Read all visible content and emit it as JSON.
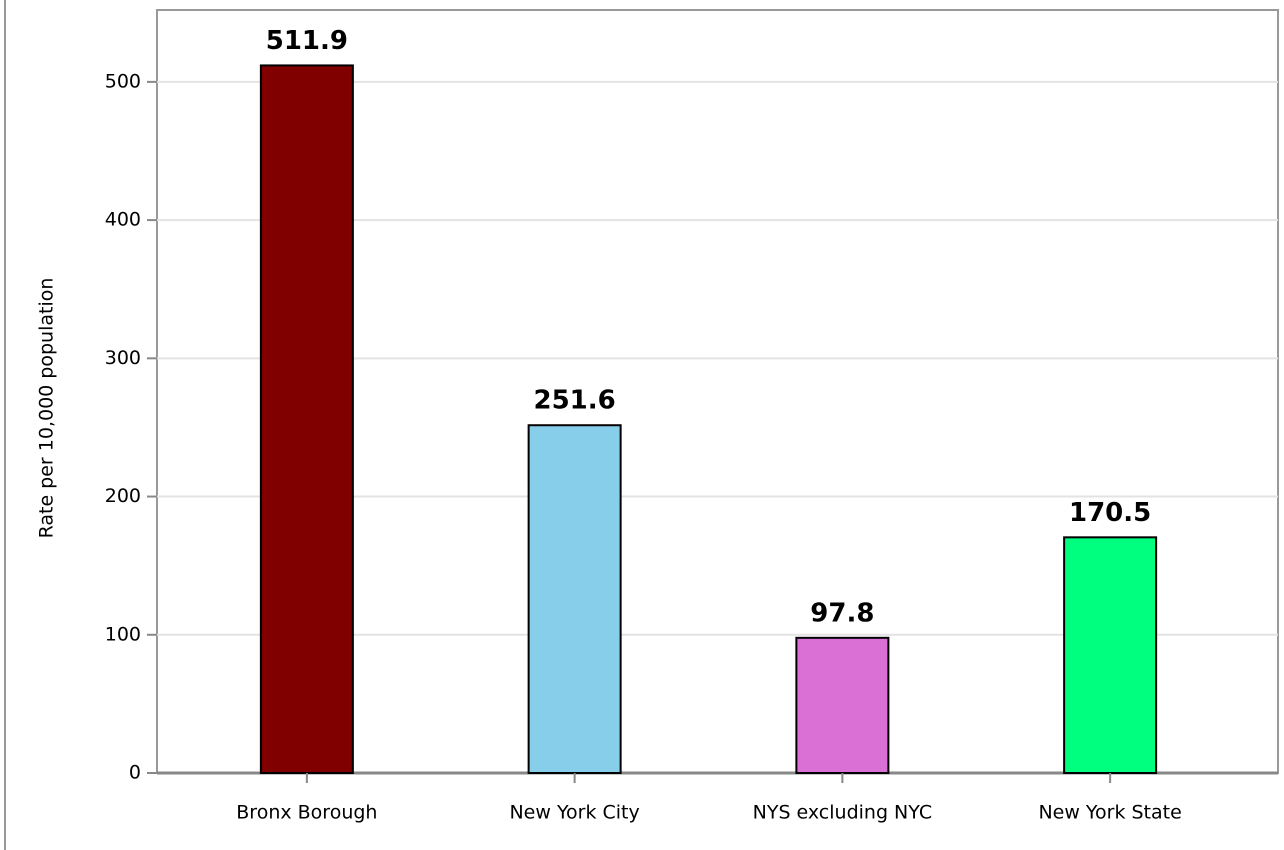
{
  "chart_data": {
    "type": "bar",
    "y_axis_label": "Rate per 10,000 population",
    "categories": [
      "Bronx Borough",
      "New York City",
      "NYS excluding NYC",
      "New York State"
    ],
    "values": [
      511.9,
      251.6,
      97.8,
      170.5
    ],
    "colors": [
      "#800000",
      "#87ceeb",
      "#da70d6",
      "#00ff7f"
    ],
    "ylim": [
      0,
      552
    ],
    "yticks": [
      0,
      100,
      200,
      300,
      400,
      500
    ],
    "grid": true
  }
}
